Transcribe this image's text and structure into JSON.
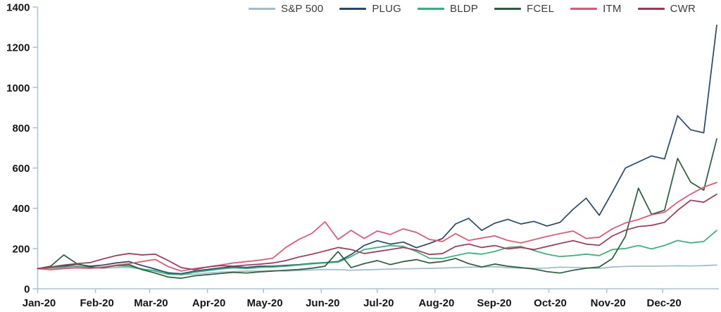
{
  "chart_data": {
    "type": "line",
    "legend_position": "top",
    "grid": "off",
    "axis_color": "#A8C4D6",
    "x_axis": {
      "labels": [
        "Jan-20",
        "Feb-20",
        "Mar-20",
        "Apr-20",
        "May-20",
        "Jun-20",
        "Jul-20",
        "Aug-20",
        "Sep-20",
        "Oct-20",
        "Nov-20",
        "Dec-20"
      ],
      "month_day_offsets": [
        0,
        31,
        60,
        91,
        121,
        152,
        182,
        213,
        244,
        274,
        305,
        335
      ],
      "total_days": 364,
      "points_interval_days": 7
    },
    "y_axis": {
      "min": 0,
      "max": 1400,
      "tick_step": 200,
      "ticks": [
        0,
        200,
        400,
        600,
        800,
        1000,
        1200,
        1400
      ]
    },
    "ylim": [
      0,
      1400
    ],
    "series": [
      {
        "name": "S&P 500",
        "color": "#9FBDCC",
        "values": [
          100,
          101,
          102,
          103,
          101,
          103,
          105,
          106,
          97,
          92,
          82,
          70,
          72,
          78,
          83,
          85,
          88,
          87,
          90,
          88,
          91,
          93,
          96,
          95,
          92,
          94,
          96,
          98,
          99,
          100,
          101,
          103,
          105,
          107,
          108,
          110,
          105,
          103,
          102,
          103,
          107,
          106,
          104,
          101,
          108,
          111,
          112,
          112,
          113,
          114,
          113,
          115,
          118
        ]
      },
      {
        "name": "PLUG",
        "color": "#234A6D",
        "values": [
          100,
          106,
          112,
          122,
          112,
          118,
          128,
          135,
          115,
          98,
          78,
          75,
          88,
          96,
          104,
          110,
          106,
          112,
          112,
          116,
          120,
          126,
          130,
          135,
          170,
          215,
          239,
          222,
          232,
          204,
          225,
          250,
          322,
          350,
          290,
          326,
          345,
          322,
          335,
          312,
          330,
          395,
          450,
          365,
          480,
          600,
          630,
          660,
          645,
          860,
          790,
          775,
          1310
        ]
      },
      {
        "name": "BLDP",
        "color": "#2CB576",
        "values": [
          100,
          104,
          108,
          112,
          106,
          108,
          114,
          112,
          98,
          88,
          72,
          70,
          82,
          90,
          98,
          104,
          100,
          106,
          108,
          112,
          118,
          124,
          128,
          132,
          160,
          195,
          205,
          215,
          210,
          185,
          152,
          150,
          165,
          178,
          172,
          185,
          205,
          210,
          190,
          172,
          160,
          165,
          172,
          165,
          195,
          200,
          215,
          198,
          215,
          240,
          228,
          235,
          290
        ]
      },
      {
        "name": "FCEL",
        "color": "#275F3A",
        "values": [
          100,
          112,
          168,
          125,
          108,
          104,
          116,
          120,
          95,
          78,
          58,
          52,
          64,
          70,
          76,
          82,
          78,
          84,
          88,
          92,
          96,
          102,
          112,
          185,
          105,
          125,
          140,
          120,
          135,
          145,
          128,
          135,
          151,
          125,
          108,
          123,
          112,
          105,
          98,
          85,
          78,
          92,
          102,
          108,
          150,
          260,
          500,
          370,
          390,
          648,
          530,
          490,
          745
        ]
      },
      {
        "name": "ITM",
        "color": "#F14E70",
        "values": [
          100,
          95,
          100,
          105,
          102,
          108,
          118,
          125,
          135,
          146,
          110,
          88,
          100,
          108,
          118,
          128,
          135,
          142,
          152,
          205,
          245,
          275,
          333,
          245,
          290,
          250,
          287,
          270,
          298,
          280,
          245,
          235,
          274,
          240,
          252,
          263,
          240,
          228,
          244,
          260,
          274,
          287,
          250,
          256,
          298,
          327,
          344,
          368,
          380,
          430,
          470,
          505,
          528
        ]
      },
      {
        "name": "CWR",
        "color": "#A73355",
        "values": [
          100,
          108,
          118,
          125,
          130,
          148,
          165,
          175,
          168,
          172,
          140,
          105,
          95,
          108,
          115,
          112,
          118,
          122,
          128,
          140,
          158,
          172,
          188,
          205,
          195,
          175,
          185,
          195,
          205,
          192,
          170,
          175,
          210,
          222,
          205,
          215,
          198,
          205,
          195,
          210,
          225,
          239,
          222,
          216,
          262,
          291,
          309,
          315,
          330,
          390,
          440,
          430,
          470
        ]
      }
    ]
  }
}
